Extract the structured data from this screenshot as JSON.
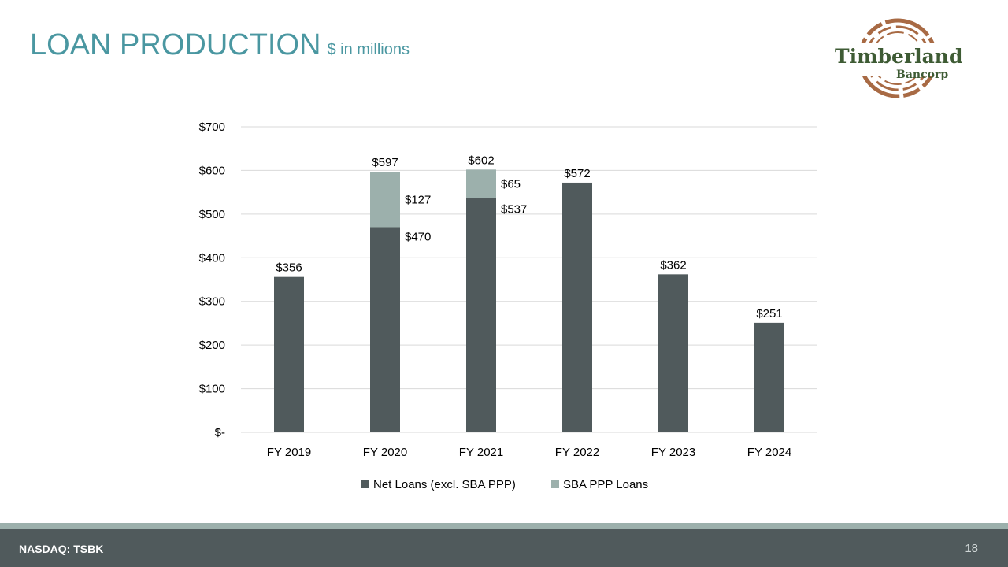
{
  "header": {
    "title": "LOAN PRODUCTION",
    "subtitle": "$ in millions"
  },
  "logo": {
    "name": "Timberland",
    "subname": "Bancorp",
    "ring_color": "#a86a44",
    "text_color": "#3e5b34"
  },
  "footer": {
    "ticker": "NASDAQ: TSBK",
    "page_number": "18"
  },
  "chart_data": {
    "type": "bar",
    "stacked": true,
    "categories": [
      "FY 2019",
      "FY 2020",
      "FY 2021",
      "FY 2022",
      "FY 2023",
      "FY 2024"
    ],
    "series": [
      {
        "name": "Net Loans (excl. SBA PPP)",
        "values": [
          356,
          470,
          537,
          572,
          362,
          251
        ],
        "color": "#505a5c"
      },
      {
        "name": "SBA PPP Loans",
        "values": [
          0,
          127,
          65,
          0,
          0,
          0
        ],
        "color": "#9cb0ac"
      }
    ],
    "totals": [
      356,
      597,
      602,
      572,
      362,
      251
    ],
    "total_labels": [
      "$356",
      "$597",
      "$602",
      "$572",
      "$362",
      "$251"
    ],
    "segment_labels": {
      "FY 2020": {
        "net": "$470",
        "ppp": "$127"
      },
      "FY 2021": {
        "net": "$537",
        "ppp": "$65"
      }
    },
    "ylim": [
      0,
      700
    ],
    "yticks": [
      0,
      100,
      200,
      300,
      400,
      500,
      600,
      700
    ],
    "ytick_labels": [
      "$-",
      "$100",
      "$200",
      "$300",
      "$400",
      "$500",
      "$600",
      "$700"
    ],
    "grid": true,
    "legend": "bottom",
    "xlabel": "",
    "ylabel": ""
  }
}
